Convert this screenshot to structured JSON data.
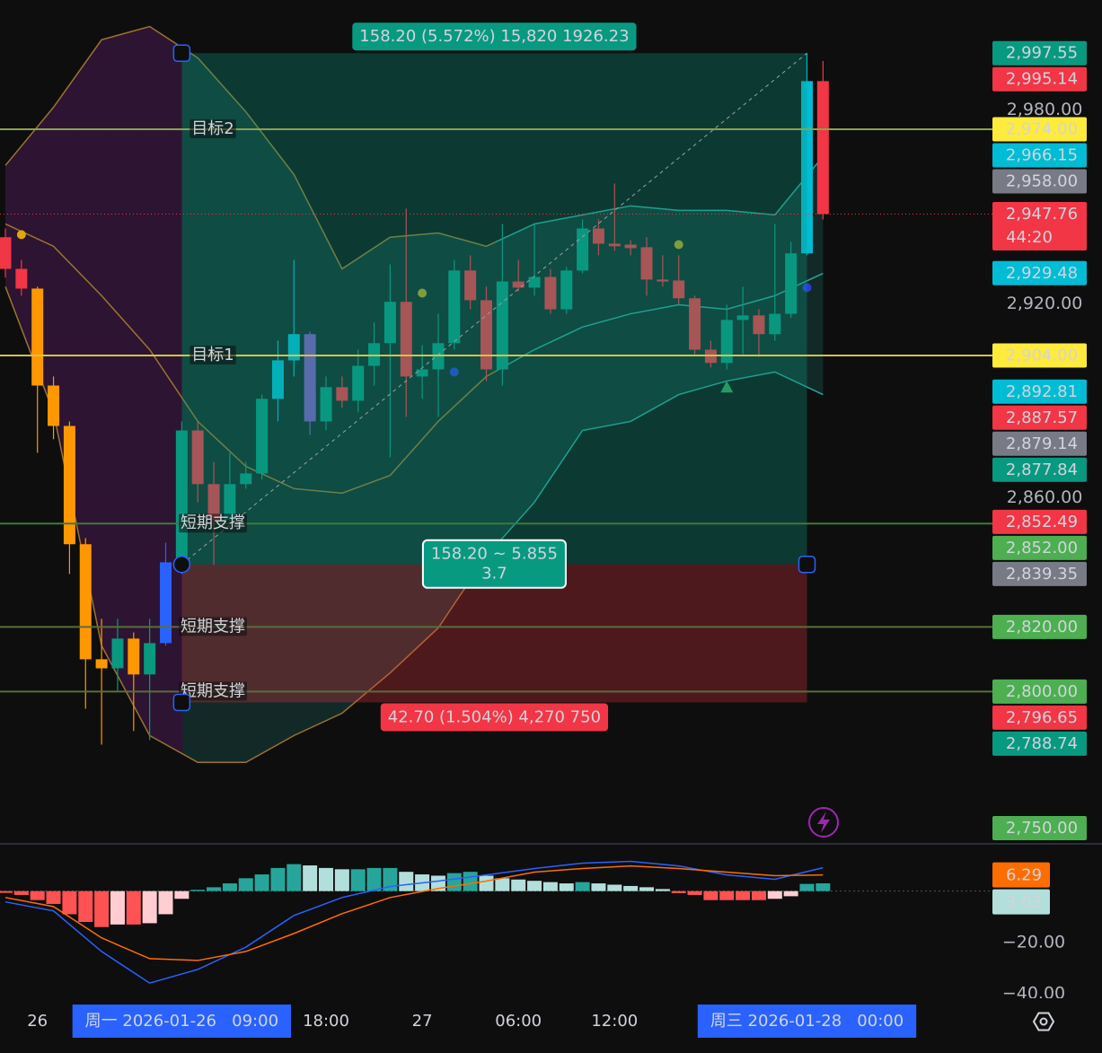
{
  "chart_data": {
    "type": "candlestick",
    "ylim": [
      2753,
      3014
    ],
    "yticks": [
      {
        "value": 2980,
        "label": "2,980.00"
      },
      {
        "value": 2920,
        "label": "2,920.00"
      },
      {
        "value": 2860,
        "label": "2,860.00"
      }
    ],
    "xticks": [
      {
        "value": 2,
        "label": "26"
      },
      {
        "value": 11,
        "label": "周一 2026-01-26   09:00",
        "highlight": true
      },
      {
        "value": 20,
        "label": "18:00"
      },
      {
        "value": 26,
        "label": "27"
      },
      {
        "value": 32,
        "label": "06:00"
      },
      {
        "value": 38,
        "label": "12:00"
      },
      {
        "value": 50,
        "label": "周三 2026-01-28   00:00",
        "highlight": true
      }
    ],
    "ohlc": [
      [
        2940.6,
        2943.3,
        2928.1,
        2930.8
      ],
      [
        2930.8,
        2933.6,
        2922.5,
        2924.7
      ],
      [
        2924.7,
        2925.3,
        2873.9,
        2894.7
      ],
      [
        2894.7,
        2897.5,
        2878.1,
        2882.2
      ],
      [
        2882.2,
        2883.6,
        2836.4,
        2845.6
      ],
      [
        2845.6,
        2847.5,
        2794.7,
        2810.0
      ],
      [
        2810.0,
        2822.5,
        2783.6,
        2807.2
      ],
      [
        2807.2,
        2822.5,
        2800.3,
        2816.4
      ],
      [
        2816.4,
        2818.3,
        2787.8,
        2805.3
      ],
      [
        2805.3,
        2822.5,
        2785.0,
        2815.0
      ],
      [
        2815.0,
        2846.1,
        2814.2,
        2840.0
      ],
      [
        2840.0,
        2883.6,
        2836.4,
        2880.8
      ],
      [
        2880.8,
        2883.6,
        2858.6,
        2864.2
      ],
      [
        2864.2,
        2871.1,
        2839.2,
        2853.1
      ],
      [
        2853.1,
        2873.9,
        2850.3,
        2864.2
      ],
      [
        2864.2,
        2871.1,
        2862.8,
        2867.5
      ],
      [
        2867.5,
        2891.9,
        2865.6,
        2890.6
      ],
      [
        2890.6,
        2908.6,
        2883.6,
        2902.5
      ],
      [
        2902.5,
        2933.6,
        2897.5,
        2910.6
      ],
      [
        2910.6,
        2911.4,
        2879.4,
        2883.6
      ],
      [
        2883.6,
        2897.5,
        2880.8,
        2894.2
      ],
      [
        2894.2,
        2897.5,
        2887.8,
        2890.0
      ],
      [
        2890.0,
        2905.8,
        2886.4,
        2900.8
      ],
      [
        2900.8,
        2914.2,
        2894.7,
        2907.8
      ],
      [
        2907.8,
        2932.2,
        2872.5,
        2920.6
      ],
      [
        2920.6,
        2949.4,
        2885.0,
        2897.5
      ],
      [
        2897.5,
        2907.2,
        2890.6,
        2899.7
      ],
      [
        2899.7,
        2916.9,
        2885.0,
        2907.8
      ],
      [
        2907.8,
        2933.6,
        2905.8,
        2930.3
      ],
      [
        2930.3,
        2935.0,
        2918.3,
        2921.1
      ],
      [
        2921.1,
        2925.3,
        2896.1,
        2899.7
      ],
      [
        2899.7,
        2944.7,
        2894.7,
        2926.9
      ],
      [
        2926.9,
        2933.6,
        2923.9,
        2925.0
      ],
      [
        2925.0,
        2944.7,
        2922.5,
        2928.3
      ],
      [
        2928.3,
        2930.8,
        2916.9,
        2918.3
      ],
      [
        2918.3,
        2931.4,
        2916.9,
        2930.3
      ],
      [
        2930.3,
        2946.1,
        2929.4,
        2943.3
      ],
      [
        2943.3,
        2946.1,
        2935.0,
        2938.6
      ],
      [
        2938.6,
        2957.2,
        2936.4,
        2937.8
      ],
      [
        2938.3,
        2939.7,
        2935.0,
        2937.2
      ],
      [
        2937.5,
        2940.6,
        2922.5,
        2927.5
      ],
      [
        2927.5,
        2935.0,
        2925.3,
        2926.9
      ],
      [
        2927.2,
        2935.0,
        2919.7,
        2921.7
      ],
      [
        2921.7,
        2922.5,
        2904.4,
        2905.8
      ],
      [
        2905.8,
        2908.6,
        2900.3,
        2901.7
      ],
      [
        2901.7,
        2919.7,
        2899.7,
        2915.0
      ],
      [
        2915.0,
        2925.3,
        2904.4,
        2916.4
      ],
      [
        2916.4,
        2918.3,
        2903.6,
        2910.6
      ],
      [
        2910.6,
        2944.7,
        2908.6,
        2916.9
      ],
      [
        2916.9,
        2939.2,
        2915.6,
        2935.6
      ],
      [
        2935.6,
        2997.55,
        2935.0,
        2988.9
      ],
      [
        2988.9,
        2995.14,
        2946.1,
        2947.76
      ]
    ],
    "candle_colors": [
      "#f23645",
      "#f23645",
      "#ff9800",
      "#ff9800",
      "#ff9800",
      "#ff9800",
      "#ff9800",
      "#089981",
      "#ff9800",
      "#089981",
      "#2962ff",
      "#089981",
      "#f23645",
      "#f23645",
      "#089981",
      "#089981",
      "#089981",
      "#00bcd4",
      "#00bcd4",
      "#7e57c2",
      "#089981",
      "#f23645",
      "#089981",
      "#089981",
      "#089981",
      "#f23645",
      "#089981",
      "#089981",
      "#089981",
      "#f23645",
      "#f23645",
      "#089981",
      "#f23645",
      "#089981",
      "#f23645",
      "#089981",
      "#089981",
      "#f23645",
      "#f23645",
      "#f23645",
      "#f23645",
      "#f23645",
      "#f23645",
      "#f23645",
      "#f23645",
      "#089981",
      "#089981",
      "#f23645",
      "#089981",
      "#089981",
      "#00bcd4",
      "#f23645"
    ],
    "bands": {
      "x": [
        0,
        3,
        6,
        9,
        12,
        15,
        18,
        21,
        24,
        27,
        30,
        33,
        36,
        39,
        42,
        45,
        48,
        51
      ],
      "upper": [
        2962.8,
        2980.8,
        3001.7,
        3005.8,
        2996.1,
        2979.4,
        2960.0,
        2930.8,
        2940.6,
        2941.9,
        2937.8,
        2944.7,
        2947.5,
        2950.3,
        2948.9,
        2948.9,
        2947.5,
        2965.6
      ],
      "middle": [
        2944.7,
        2937.8,
        2922.5,
        2905.8,
        2883.6,
        2869.7,
        2862.8,
        2861.4,
        2866.9,
        2883.6,
        2897.5,
        2905.8,
        2912.8,
        2916.9,
        2919.7,
        2918.3,
        2922.5,
        2929.4
      ],
      "lower": [
        2925.3,
        2886.4,
        2814.2,
        2786.4,
        2778.1,
        2778.1,
        2786.4,
        2793.3,
        2805.8,
        2819.7,
        2841.9,
        2858.6,
        2880.8,
        2883.6,
        2891.9,
        2896.1,
        2898.9,
        2891.9
      ]
    },
    "markers": [
      {
        "index": 1,
        "value": 2941.4,
        "shape": "dot",
        "color": "#e0a800"
      },
      {
        "index": 26,
        "value": 2923.3,
        "shape": "dot",
        "color": "#b5a020"
      },
      {
        "index": 42,
        "value": 2938.3,
        "shape": "dot",
        "color": "#b5a020"
      },
      {
        "index": 28,
        "value": 2898.9,
        "shape": "dot",
        "color": "#2a3cd8"
      },
      {
        "index": 50,
        "value": 2925.0,
        "shape": "dot",
        "color": "#2a3cd8"
      },
      {
        "index": 45,
        "value": 2894.2,
        "shape": "triangle",
        "color": "#2e9e5a"
      }
    ],
    "hlines": [
      {
        "value": 2974,
        "label": "目标2",
        "color": "#8aa34a",
        "label_color": "#93b84f"
      },
      {
        "value": 2904,
        "label": "目标1",
        "color": "#d4c24a",
        "label_color": "#93b84f"
      },
      {
        "value": 2852,
        "label": "短期支撑",
        "color": "#3f7a3a",
        "label_color": "#e3c24a"
      },
      {
        "value": 2820,
        "label": "短期支撑",
        "color": "#5a6e3a",
        "label_color": "#e3c24a"
      },
      {
        "value": 2800,
        "label": "短期支撑",
        "color": "#5a6e3a",
        "label_color": "#e3c24a"
      }
    ],
    "position": {
      "start": 11,
      "end": 50,
      "entry": 2839.35,
      "target": 2997.55,
      "stop": 2796.65,
      "target_label": "158.20 (5.572%) 15,820 1926.23",
      "center_label": [
        "158.20 ~ 5.855",
        "3.7"
      ],
      "stop_label": "42.70 (1.504%) 4,270 750"
    },
    "badges": [
      {
        "value": 2997.55,
        "label": "2,997.55",
        "color": "#089981"
      },
      {
        "value": 2995.14,
        "label": "2,995.14",
        "color": "#f23645"
      },
      {
        "value": 2974,
        "label": "2,974.00",
        "color": "#ffeb3b"
      },
      {
        "value": 2966.15,
        "label": "2,966.15",
        "color": "#00bcd4"
      },
      {
        "value": 2958,
        "label": "2,958.00",
        "color": "#787b86"
      },
      {
        "value": 2947.76,
        "label": "2,947.76",
        "color": "#f23645",
        "countdown": "44:20"
      },
      {
        "value": 2929.48,
        "label": "2,929.48",
        "color": "#00bcd4"
      },
      {
        "value": 2904,
        "label": "2,904.00",
        "color": "#ffeb3b"
      },
      {
        "value": 2892.81,
        "label": "2,892.81",
        "color": "#00bcd4"
      },
      {
        "value": 2887.57,
        "label": "2,887.57",
        "color": "#f23645"
      },
      {
        "value": 2879.14,
        "label": "2,879.14",
        "color": "#787b86"
      },
      {
        "value": 2877.84,
        "label": "2,877.84",
        "color": "#089981"
      },
      {
        "value": 2852.49,
        "label": "2,852.49",
        "color": "#f23645"
      },
      {
        "value": 2852,
        "label": "2,852.00",
        "color": "#4caf50"
      },
      {
        "value": 2839.35,
        "label": "2,839.35",
        "color": "#787b86"
      },
      {
        "value": 2820,
        "label": "2,820.00",
        "color": "#4caf50"
      },
      {
        "value": 2800,
        "label": "2,800.00",
        "color": "#4caf50"
      },
      {
        "value": 2796.65,
        "label": "2,796.65",
        "color": "#f23645"
      },
      {
        "value": 2788.74,
        "label": "2,788.74",
        "color": "#089981"
      },
      {
        "value": 2750,
        "label": "2,750.00",
        "color": "#4caf50"
      }
    ],
    "macd": {
      "ylim": [
        -41,
        17
      ],
      "yticks": [
        {
          "value": -20,
          "label": "−20.00"
        },
        {
          "value": -40,
          "label": "−40.00"
        }
      ],
      "histogram": [
        -0.7,
        -1.5,
        -3.5,
        -5,
        -9,
        -12,
        -14,
        -13,
        -13,
        -12.5,
        -9,
        -3,
        0.5,
        1.5,
        3,
        5,
        6.5,
        9,
        10.5,
        10,
        9,
        8.5,
        8.5,
        9,
        9,
        7.5,
        6.5,
        6,
        7,
        7.5,
        6,
        5,
        4.5,
        4,
        3.5,
        3,
        3.5,
        3,
        2.5,
        2,
        1.5,
        0.8,
        -0.8,
        -1.5,
        -3.5,
        -3.5,
        -3.5,
        -3.5,
        -3,
        -2,
        2.8,
        3.03
      ],
      "hist_colors": [
        "#26a69a",
        "#b2dfdb",
        "#ff5252",
        "#ffcdd2"
      ],
      "x": [
        0,
        3,
        6,
        9,
        12,
        15,
        18,
        21,
        24,
        27,
        30,
        33,
        36,
        39,
        42,
        45,
        48,
        51
      ],
      "series": [
        {
          "color": "#2962ff",
          "values": [
            -4.2,
            -7.7,
            -23.5,
            -35.8,
            -30.5,
            -21.8,
            -9.5,
            -2.5,
            1.8,
            3.9,
            6.3,
            8.8,
            10.9,
            11.6,
            9.8,
            6.3,
            4.6,
            9.1
          ]
        },
        {
          "color": "#ff6d00",
          "values": [
            -2.5,
            -6,
            -18.2,
            -26.3,
            -27,
            -23.5,
            -16.5,
            -8.8,
            -2.5,
            1,
            3.9,
            7.4,
            8.8,
            9.8,
            8.8,
            7.4,
            6,
            6.29
          ]
        }
      ],
      "badges": [
        {
          "value": 6.29,
          "label": "6.29",
          "color": "#ff6d00"
        },
        {
          "value": 3.03,
          "label": "3.03",
          "color": "#b2dfdb"
        }
      ]
    }
  }
}
